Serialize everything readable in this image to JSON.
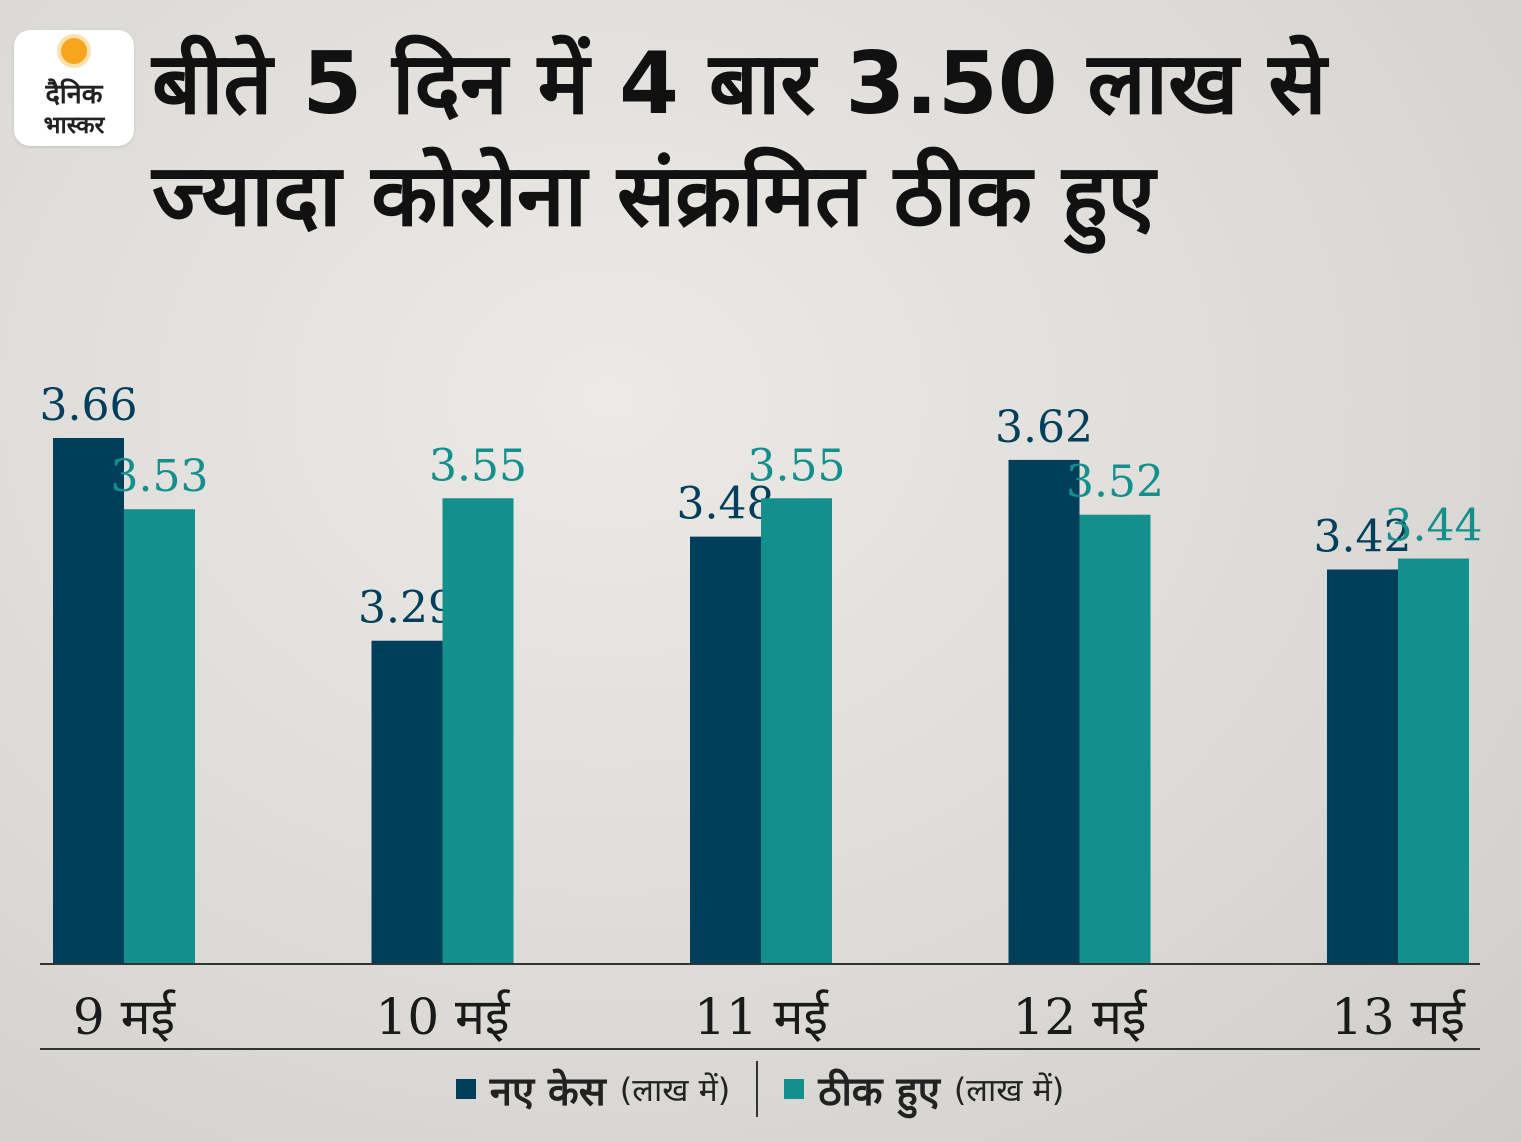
{
  "logo": {
    "line1": "दैनिक",
    "line2": "भास्कर"
  },
  "title": "बीते 5 दिन में 4 बार 3.50 लाख से ज्यादा कोरोना संक्रमित ठीक हुए",
  "colors": {
    "new_cases": "#003f5c",
    "recovered": "#138f8c",
    "axis": "#333333"
  },
  "legend": {
    "items": [
      {
        "name": "नए केस",
        "unit": "(लाख में)"
      },
      {
        "name": "ठीक हुए",
        "unit": "(लाख में)"
      }
    ]
  },
  "chart_data": {
    "type": "bar",
    "categories": [
      "9 मई",
      "10 मई",
      "11 मई",
      "12 मई",
      "13 मई"
    ],
    "series": [
      {
        "name": "नए केस",
        "values": [
          3.66,
          3.29,
          3.48,
          3.62,
          3.42
        ],
        "labels": [
          "3.66",
          "3.29",
          "3.48",
          "3.62",
          "3.42"
        ]
      },
      {
        "name": "ठीक हुए",
        "values": [
          3.53,
          3.55,
          3.55,
          3.52,
          3.44
        ],
        "labels": [
          "3.53",
          "3.55",
          "3.55",
          "3.52",
          "3.44"
        ]
      }
    ],
    "ylim": [
      2.7,
      3.7
    ],
    "legend": "bottom",
    "grid": false
  }
}
